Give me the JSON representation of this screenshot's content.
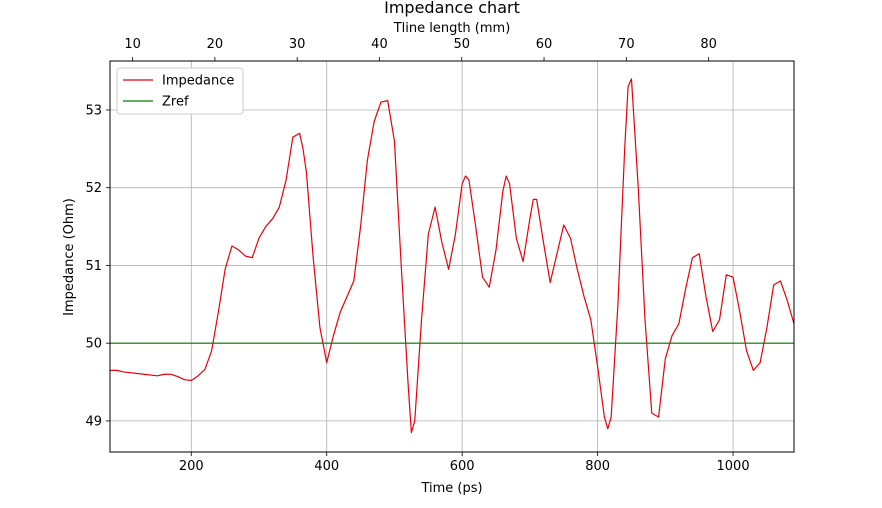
{
  "chart_data": {
    "type": "line",
    "title": "Impedance chart",
    "xlabel": "Time (ps)",
    "ylabel": "Impedance (Ohm)",
    "top_xlabel": "Tline length (mm)",
    "xlim": [
      80,
      1090
    ],
    "ylim": [
      48.6,
      53.63
    ],
    "xticks": [
      200,
      400,
      600,
      800,
      1000
    ],
    "yticks": [
      49,
      50,
      51,
      52,
      53
    ],
    "top_xticks": [
      10,
      20,
      30,
      40,
      50,
      60,
      70,
      80
    ],
    "top_axis_mm_per_ps": 0.0823,
    "top_axis_mm_offset": 0.67,
    "grid": true,
    "legend_position": "upper-left",
    "colors": {
      "impedance": "#e8000b",
      "zref": "#008000"
    },
    "series": [
      {
        "name": "Impedance",
        "x": [
          80,
          90,
          100,
          110,
          120,
          130,
          140,
          150,
          160,
          170,
          180,
          190,
          200,
          210,
          220,
          230,
          240,
          250,
          260,
          270,
          280,
          290,
          300,
          310,
          320,
          330,
          340,
          350,
          360,
          365,
          370,
          380,
          390,
          400,
          410,
          420,
          430,
          440,
          450,
          460,
          470,
          480,
          490,
          500,
          510,
          520,
          525,
          530,
          540,
          550,
          560,
          570,
          580,
          590,
          600,
          605,
          610,
          620,
          630,
          640,
          650,
          660,
          665,
          670,
          680,
          690,
          700,
          705,
          710,
          720,
          730,
          740,
          750,
          760,
          770,
          780,
          790,
          800,
          810,
          815,
          820,
          830,
          840,
          845,
          850,
          860,
          870,
          880,
          890,
          900,
          910,
          920,
          930,
          940,
          950,
          960,
          970,
          980,
          990,
          1000,
          1010,
          1020,
          1030,
          1040,
          1050,
          1060,
          1070,
          1080,
          1090
        ],
        "y": [
          49.65,
          49.65,
          49.63,
          49.62,
          49.61,
          49.6,
          49.59,
          49.58,
          49.6,
          49.6,
          49.57,
          49.53,
          49.52,
          49.58,
          49.66,
          49.9,
          50.4,
          50.95,
          51.25,
          51.2,
          51.12,
          51.1,
          51.35,
          51.5,
          51.6,
          51.75,
          52.1,
          52.65,
          52.7,
          52.5,
          52.2,
          51.1,
          50.2,
          49.75,
          50.1,
          50.4,
          50.6,
          50.8,
          51.5,
          52.35,
          52.85,
          53.1,
          53.12,
          52.6,
          51.0,
          49.5,
          48.85,
          49.0,
          50.3,
          51.4,
          51.75,
          51.3,
          50.95,
          51.4,
          52.05,
          52.15,
          52.1,
          51.5,
          50.85,
          50.72,
          51.2,
          51.95,
          52.15,
          52.05,
          51.35,
          51.05,
          51.6,
          51.85,
          51.85,
          51.3,
          50.78,
          51.15,
          51.52,
          51.35,
          50.95,
          50.6,
          50.3,
          49.7,
          49.05,
          48.9,
          49.05,
          50.5,
          52.5,
          53.3,
          53.4,
          52.0,
          50.3,
          49.1,
          49.05,
          49.8,
          50.1,
          50.25,
          50.7,
          51.1,
          51.15,
          50.6,
          50.15,
          50.3,
          50.88,
          50.85,
          50.4,
          49.9,
          49.65,
          49.75,
          50.2,
          50.75,
          50.8,
          50.55,
          50.25
        ]
      },
      {
        "name": "Zref",
        "x": [
          80,
          1090
        ],
        "y": [
          50,
          50
        ]
      }
    ]
  }
}
